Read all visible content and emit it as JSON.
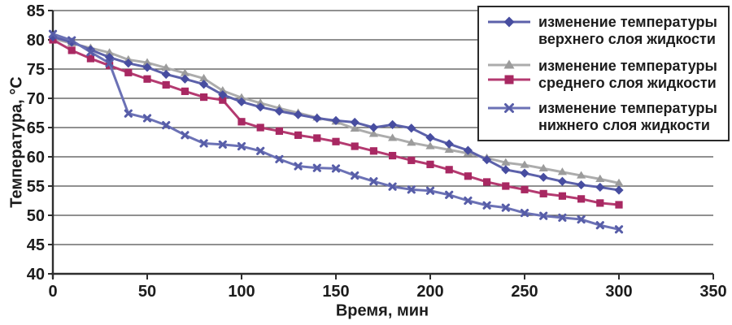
{
  "chart_data": {
    "type": "line",
    "title": "",
    "x_label": "Время, мин",
    "y_label": "Температура, °С",
    "xlim": [
      0,
      350
    ],
    "ylim": [
      40,
      85
    ],
    "x_ticks": [
      0,
      50,
      100,
      150,
      200,
      250,
      300,
      350
    ],
    "y_ticks": [
      40,
      45,
      50,
      55,
      60,
      65,
      70,
      75,
      80,
      85
    ],
    "grid": "horizontal-only",
    "legend_position": "top-right",
    "colors": {
      "grid_line": "#4e4e4e",
      "axis_line": "#2e2e2e",
      "text": "#1c1c1c",
      "upper_series": "#5c61aa",
      "gray_series": "#acacac",
      "middle_series": "#b43a70",
      "lower_series": "#6b71b5"
    },
    "x": [
      0,
      10,
      20,
      30,
      40,
      50,
      60,
      70,
      80,
      90,
      100,
      110,
      120,
      130,
      140,
      150,
      160,
      170,
      180,
      190,
      200,
      210,
      220,
      230,
      240,
      250,
      260,
      270,
      280,
      290,
      300
    ],
    "series": [
      {
        "name": "изменение температуры верхнего слоя жидкости",
        "marker": "diamond",
        "line_color": "#5c61aa",
        "marker_color": "#474da0",
        "values": [
          80.5,
          79.6,
          78.3,
          77.0,
          76.0,
          75.3,
          74.1,
          73.3,
          72.4,
          70.6,
          69.4,
          68.5,
          67.8,
          67.2,
          66.6,
          66.2,
          65.9,
          65.0,
          65.5,
          64.9,
          63.3,
          62.2,
          61.1,
          59.5,
          57.8,
          57.2,
          56.5,
          55.8,
          55.2,
          54.8,
          54.3
        ]
      },
      {
        "name": "изменение температуры среднего слоя жидкости",
        "marker": "triangle",
        "line_color": "#acacac",
        "marker_color": "#9c9c9c",
        "values": [
          80.2,
          79.4,
          78.6,
          77.8,
          76.6,
          76.1,
          75.2,
          74.3,
          73.4,
          71.3,
          70.1,
          69.2,
          68.3,
          67.5,
          66.7,
          66.0,
          64.8,
          63.9,
          63.2,
          62.4,
          61.8,
          61.2,
          60.6,
          59.8,
          59.0,
          58.6,
          58.0,
          57.4,
          56.8,
          56.2,
          55.5
        ]
      },
      {
        "name": "изменение температуры среднего слоя жидкости",
        "marker": "square",
        "line_color": "#b43a70",
        "marker_color": "#a82862",
        "values": [
          80.0,
          78.2,
          76.8,
          75.6,
          74.4,
          73.3,
          72.3,
          71.2,
          70.2,
          69.7,
          66.0,
          65.0,
          64.4,
          63.7,
          63.2,
          62.6,
          61.8,
          61.0,
          60.2,
          59.4,
          58.7,
          57.8,
          56.7,
          55.7,
          55.0,
          54.4,
          53.7,
          53.3,
          52.8,
          52.1,
          51.8
        ]
      },
      {
        "name": "изменение температуры нижнего слоя жидкости",
        "marker": "x",
        "line_color": "#6b71b5",
        "marker_color": "#575da8",
        "values": [
          81.0,
          79.9,
          77.9,
          76.0,
          67.4,
          66.6,
          65.4,
          63.7,
          62.3,
          62.1,
          61.8,
          61.0,
          59.6,
          58.4,
          58.1,
          58.0,
          56.8,
          55.8,
          54.9,
          54.4,
          54.2,
          53.5,
          52.5,
          51.7,
          51.3,
          50.4,
          49.9,
          49.6,
          49.3,
          48.3,
          47.6
        ]
      }
    ],
    "legend": {
      "entries": [
        {
          "line1": "изменение температуры",
          "line2": "верхнего слоя жидкости",
          "series": [
            0
          ]
        },
        {
          "line1": "изменение температуры",
          "line2": "среднего слоя жидкости",
          "series": [
            1,
            2
          ]
        },
        {
          "line1": "изменение температуры",
          "line2": "нижнего слоя жидкости",
          "series": [
            3
          ]
        }
      ]
    }
  }
}
